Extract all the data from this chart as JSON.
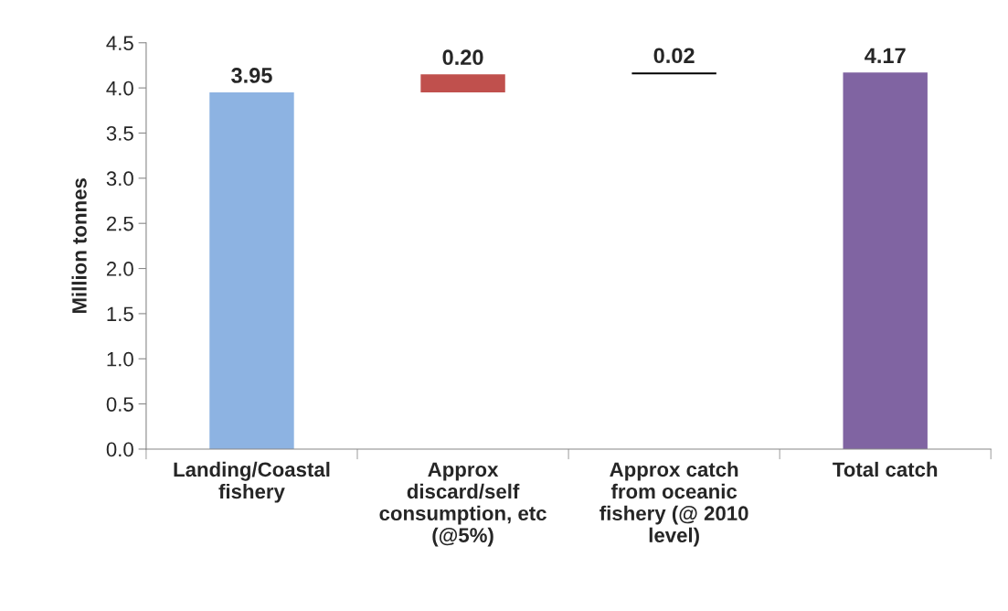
{
  "chart_data": {
    "type": "bar",
    "ylabel": "Million tonnes",
    "categories": [
      "Landing/Coastal\nfishery",
      "Approx\ndiscard/self\nconsumption, etc\n(@5%)",
      "Approx catch\nfrom oceanic\nfishery (@ 2010\nlevel)",
      "Total catch"
    ],
    "values": [
      3.95,
      0.2,
      0.02,
      4.17
    ],
    "base": [
      0,
      3.95,
      4.15,
      0
    ],
    "colors": [
      "#8db3e2",
      "#c0504d",
      "#000000",
      "#8064a2"
    ],
    "value_labels": [
      "3.95",
      "0.20",
      "0.02",
      "4.17"
    ],
    "ylim": [
      0,
      4.5
    ],
    "yticks": [
      {
        "value": 0,
        "label": "0.0"
      },
      {
        "value": 0.5,
        "label": "0.5"
      },
      {
        "value": 1,
        "label": "1.0"
      },
      {
        "value": 1.5,
        "label": "1.5"
      },
      {
        "value": 2,
        "label": "2.0"
      },
      {
        "value": 2.5,
        "label": "2.5"
      },
      {
        "value": 3,
        "label": "3.0"
      },
      {
        "value": 3.5,
        "label": "3.5"
      },
      {
        "value": 4,
        "label": "4.0"
      },
      {
        "value": 4.5,
        "label": "4.5"
      }
    ],
    "grid": false,
    "legend": false
  }
}
